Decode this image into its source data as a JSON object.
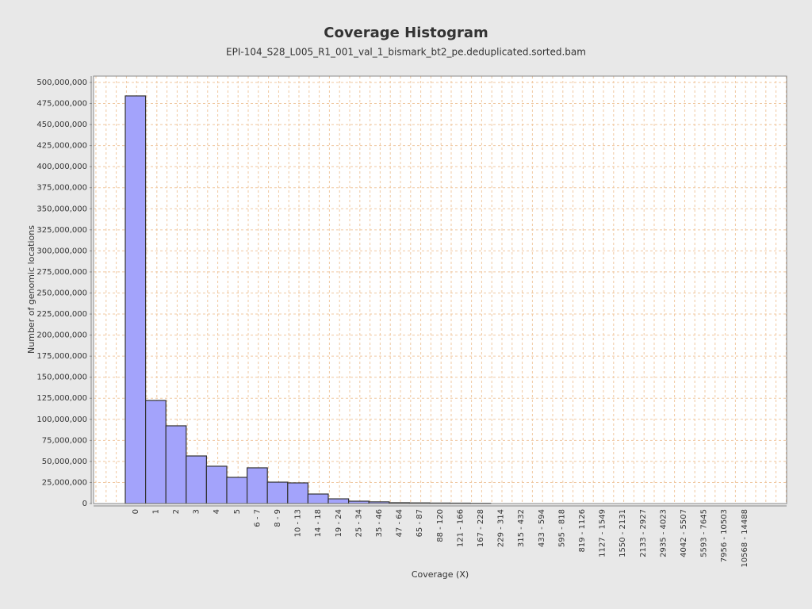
{
  "chart_data": {
    "type": "bar",
    "title": "Coverage Histogram",
    "subtitle": "EPI-104_S28_L005_R1_001_val_1_bismark_bt2_pe.deduplicated.sorted.bam",
    "x_label": "Coverage (X)",
    "y_label": "Number of genomic locations",
    "categories": [
      "0",
      "1",
      "2",
      "3",
      "4",
      "5",
      "6 - 7",
      "8 - 9",
      "10 - 13",
      "14 - 18",
      "19 - 24",
      "25 - 34",
      "35 - 46",
      "47 - 64",
      "65 - 87",
      "88 - 120",
      "121 - 166",
      "167 - 228",
      "229 - 314",
      "315 - 432",
      "433 - 594",
      "595 - 818",
      "819 - 1126",
      "1127 - 1549",
      "1550 - 2131",
      "2133 - 2927",
      "2935 - 4023",
      "4042 - 5507",
      "5593 - 7645",
      "7956 - 10503",
      "10568 - 14488"
    ],
    "values": [
      484000000,
      122400000,
      92300000,
      56500000,
      44300000,
      31100000,
      42400000,
      25400000,
      24500000,
      11300000,
      5600000,
      2800000,
      2000000,
      1000000,
      800000,
      600000,
      500000,
      300000,
      0,
      0,
      0,
      0,
      0,
      0,
      0,
      0,
      0,
      0,
      0,
      0,
      0
    ],
    "color": "#a3a3fb",
    "ylim": [
      0,
      507500000
    ],
    "yticks": [
      0,
      {
        "value": 25000000,
        "label": "25,000,000"
      },
      {
        "value": 50000000,
        "label": "50,000,000"
      },
      {
        "value": 75000000,
        "label": "75,000,000"
      },
      {
        "value": 100000000,
        "label": "100,000,000"
      },
      {
        "value": 125000000,
        "label": "125,000,000"
      },
      {
        "value": 150000000,
        "label": "150,000,000"
      },
      {
        "value": 175000000,
        "label": "175,000,000"
      },
      {
        "value": 200000000,
        "label": "200,000,000"
      },
      {
        "value": 225000000,
        "label": "225,000,000"
      },
      {
        "value": 250000000,
        "label": "250,000,000"
      },
      {
        "value": 275000000,
        "label": "275,000,000"
      },
      {
        "value": 300000000,
        "label": "300,000,000"
      },
      {
        "value": 325000000,
        "label": "325,000,000"
      },
      {
        "value": 350000000,
        "label": "350,000,000"
      },
      {
        "value": 375000000,
        "label": "375,000,000"
      },
      {
        "value": 400000000,
        "label": "400,000,000"
      },
      {
        "value": 425000000,
        "label": "425,000,000"
      },
      {
        "value": 450000000,
        "label": "450,000,000"
      },
      {
        "value": 475000000,
        "label": "475,000,000"
      },
      {
        "value": 500000000,
        "label": "500,000,000"
      }
    ],
    "grid": true
  }
}
